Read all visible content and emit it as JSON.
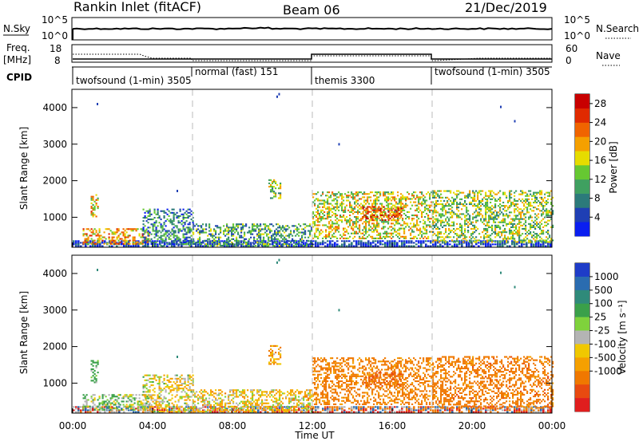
{
  "header": {
    "radar": "Rankin Inlet (fitACF)",
    "beam": "Beam 06",
    "date": "21/Dec/2019"
  },
  "noise_panel": {
    "left_label": "N.Sky",
    "right_label": "N.Search",
    "left_ticks": [
      "10^5",
      "10^0"
    ],
    "right_ticks": [
      "10^5",
      "10^0"
    ]
  },
  "freq_panel": {
    "left_label_1": "Freq.",
    "left_label_2": "[MHz]",
    "right_label": "Nave",
    "left_ticks": [
      "18",
      "8"
    ],
    "right_ticks": [
      "60",
      "0"
    ]
  },
  "cpid": {
    "label": "CPID",
    "segments": [
      {
        "name": "twofsound (1-min) 3505",
        "start": 0,
        "end": 6
      },
      {
        "name": "normal (fast) 151",
        "start": 6,
        "end": 12
      },
      {
        "name": "themis 3300",
        "start": 12,
        "end": 18
      },
      {
        "name": "twofsound (1-min) 3505",
        "start": 18,
        "end": 24
      }
    ]
  },
  "power_panel": {
    "ylabel": "Slant Range [km]",
    "yticks": [
      "1000",
      "2000",
      "3000",
      "4000"
    ],
    "cbar_label": "Power [dB]",
    "cbar_ticks": [
      "4",
      "8",
      "12",
      "16",
      "20",
      "24",
      "28"
    ],
    "cbar_colors": [
      "#0a1ef0",
      "#1f3fb4",
      "#2c7a7a",
      "#3fa060",
      "#66c832",
      "#e6dc00",
      "#f5a000",
      "#f06400",
      "#e02a00",
      "#c80000"
    ]
  },
  "velocity_panel": {
    "ylabel": "Slant Range [km]",
    "yticks": [
      "1000",
      "2000",
      "3000",
      "4000"
    ],
    "cbar_label": "Velocity [m s⁻¹]",
    "cbar_ticks": [
      "1000",
      "500",
      "100",
      "25",
      "-25",
      "-100",
      "-500",
      "-1000"
    ],
    "cbar_colors": [
      "#1e3cc8",
      "#2a6cb0",
      "#2f8a7a",
      "#3aa04a",
      "#7fd23c",
      "#b4b4b4",
      "#f0c800",
      "#f5a000",
      "#f07800",
      "#e84a10",
      "#e01e1e"
    ]
  },
  "xaxis": {
    "label": "Time UT",
    "ticks": [
      "00:00",
      "04:00",
      "08:00",
      "12:00",
      "16:00",
      "20:00",
      "00:00"
    ]
  },
  "chart_data": {
    "type": "heatmap",
    "title": "Rankin Inlet (fitACF)",
    "subtitle": "Beam 06 — 21/Dec/2019",
    "xlabel": "Time UT",
    "ylabel": "Slant Range [km]",
    "xlim_hours": [
      0,
      24
    ],
    "ylim_km": [
      180,
      4500
    ],
    "power_range_db": [
      0,
      30
    ],
    "velocity_range_ms": [
      -1000,
      1000
    ],
    "mode_boundaries_hours": [
      6,
      12,
      18
    ],
    "scatter_regions": [
      {
        "t_start": 0.9,
        "t_end": 1.3,
        "r_low": 1000,
        "r_high": 1600,
        "power_db": 18,
        "velocity": 120
      },
      {
        "t_start": 0.5,
        "t_end": 3.8,
        "r_low": 250,
        "r_high": 700,
        "power_db": 20,
        "velocity": 60
      },
      {
        "t_start": 3.5,
        "t_end": 6.0,
        "r_low": 200,
        "r_high": 1200,
        "power_db": 8,
        "velocity": -30
      },
      {
        "t_start": 6.0,
        "t_end": 12.0,
        "r_low": 200,
        "r_high": 800,
        "power_db": 10,
        "velocity": -60
      },
      {
        "t_start": 9.8,
        "t_end": 10.4,
        "r_low": 1500,
        "r_high": 2000,
        "power_db": 14,
        "velocity": -150
      },
      {
        "t_start": 12.0,
        "t_end": 18.0,
        "r_low": 400,
        "r_high": 1700,
        "power_db": 16,
        "velocity": -250
      },
      {
        "t_start": 14.5,
        "t_end": 16.5,
        "r_low": 900,
        "r_high": 1300,
        "power_db": 24,
        "velocity": -350
      },
      {
        "t_start": 18.0,
        "t_end": 24.0,
        "r_low": 300,
        "r_high": 1700,
        "power_db": 14,
        "velocity": -280
      }
    ]
  }
}
